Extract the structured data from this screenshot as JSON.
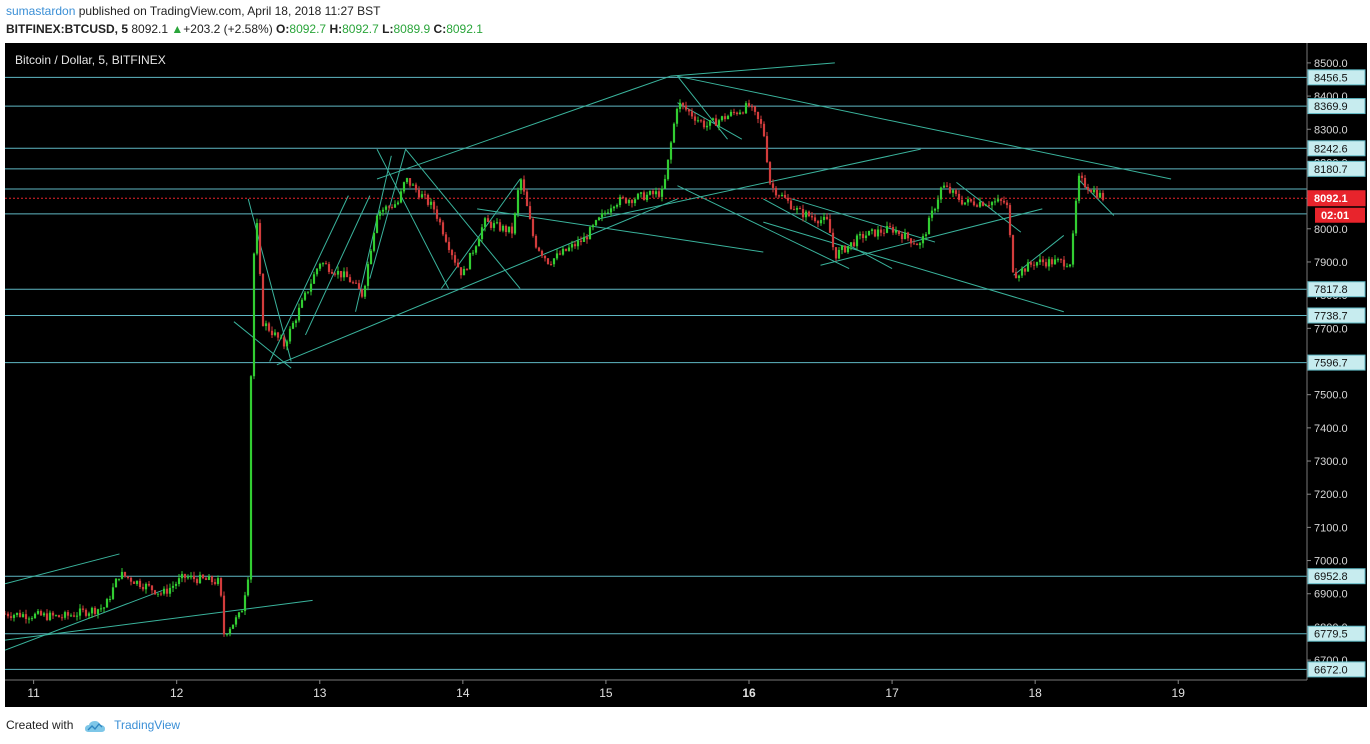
{
  "header": {
    "author": "sumastardon",
    "published_text": "published on TradingView.com, April 18, 2018 11:27 BST",
    "symbol": "BITFINEX:BTCUSD, 5",
    "last": "8092.1",
    "change": "+203.2 (+2.58%)",
    "o_label": "O:",
    "o": "8092.7",
    "h_label": "H:",
    "h": "8092.7",
    "l_label": "L:",
    "l": "8089.9",
    "c_label": "C:",
    "c": "8092.1"
  },
  "footer": {
    "created_with": "Created with",
    "brand": "TradingView"
  },
  "colors": {
    "background": "#000000",
    "up": "#32cd32",
    "down": "#d23c3c",
    "level": "#5fb8c4",
    "trend": "#3ab39c",
    "price_tag": "#e8242c"
  },
  "chart_data": {
    "type": "candlestick",
    "title": "Bitcoin / Dollar, 5, BITFINEX",
    "ylim": [
      6640,
      8560
    ],
    "y_ticks": [
      6700,
      6800,
      6900,
      7000,
      7100,
      7200,
      7300,
      7400,
      7500,
      7600,
      7700,
      7800,
      7900,
      8000,
      8100,
      8200,
      8300,
      8400,
      8500
    ],
    "y_tick_labels": [
      "6700.0",
      "6800.0",
      "6900.0",
      "7000.0",
      "7100.0",
      "7200.0",
      "7300.0",
      "7400.0",
      "7500.0",
      "7600.0",
      "7700.0",
      "7800.0",
      "7900.0",
      "8000.0",
      "8100.0",
      "8200.0",
      "8300.0",
      "8400.0",
      "8500.0"
    ],
    "x_range": [
      10.8,
      19.9
    ],
    "x_ticks": [
      11,
      12,
      13,
      14,
      15,
      16,
      17,
      18,
      19
    ],
    "x_tick_labels": [
      "11",
      "12",
      "13",
      "14",
      "15",
      "16",
      "17",
      "18",
      "19"
    ],
    "x_tick_bold": [
      16
    ],
    "horizontal_levels": [
      8456.5,
      8369.9,
      8242.6,
      8180.7,
      8092.1,
      7817.8,
      7738.7,
      7596.7,
      6952.8,
      6779.5,
      6672.0
    ],
    "level_labels": [
      "8456.5",
      "8369.9",
      "8242.6",
      "8180.7",
      "8092.1",
      "7817.8",
      "7738.7",
      "7596.7",
      "6952.8",
      "6779.5",
      "6672.0"
    ],
    "extra_levels": [
      8120,
      8045
    ],
    "last_price": 8092.1,
    "last_price_label": "8092.1",
    "countdown": "02:01",
    "price_path": [
      [
        10.8,
        6840
      ],
      [
        11.2,
        6830
      ],
      [
        11.5,
        6860
      ],
      [
        11.6,
        6960
      ],
      [
        11.9,
        6900
      ],
      [
        12.05,
        6950
      ],
      [
        12.3,
        6935
      ],
      [
        12.33,
        6780
      ],
      [
        12.45,
        6840
      ],
      [
        12.5,
        6960
      ],
      [
        12.52,
        7580
      ],
      [
        12.55,
        8090
      ],
      [
        12.6,
        7720
      ],
      [
        12.75,
        7650
      ],
      [
        12.9,
        7800
      ],
      [
        13.0,
        7900
      ],
      [
        13.2,
        7850
      ],
      [
        13.3,
        7800
      ],
      [
        13.4,
        8050
      ],
      [
        13.55,
        8080
      ],
      [
        13.6,
        8150
      ],
      [
        13.8,
        8060
      ],
      [
        13.95,
        7900
      ],
      [
        14.0,
        7860
      ],
      [
        14.15,
        8020
      ],
      [
        14.35,
        7990
      ],
      [
        14.4,
        8160
      ],
      [
        14.5,
        7960
      ],
      [
        14.6,
        7900
      ],
      [
        14.85,
        7970
      ],
      [
        15.05,
        8080
      ],
      [
        15.4,
        8110
      ],
      [
        15.5,
        8380
      ],
      [
        15.7,
        8310
      ],
      [
        16.0,
        8370
      ],
      [
        16.1,
        8300
      ],
      [
        16.15,
        8130
      ],
      [
        16.35,
        8050
      ],
      [
        16.55,
        8020
      ],
      [
        16.6,
        7920
      ],
      [
        16.8,
        7980
      ],
      [
        17.0,
        8000
      ],
      [
        17.2,
        7950
      ],
      [
        17.35,
        8130
      ],
      [
        17.5,
        8080
      ],
      [
        17.8,
        8080
      ],
      [
        17.85,
        7860
      ],
      [
        18.0,
        7900
      ],
      [
        18.25,
        7900
      ],
      [
        18.3,
        8150
      ],
      [
        18.48,
        8092
      ]
    ],
    "trend_lines": [
      [
        10.8,
        6930,
        11.6,
        7020
      ],
      [
        10.8,
        6730,
        11.9,
        6910
      ],
      [
        10.8,
        6760,
        12.95,
        6880
      ],
      [
        12.5,
        8090,
        12.8,
        7600
      ],
      [
        12.4,
        7720,
        12.8,
        7580
      ],
      [
        12.65,
        7600,
        13.2,
        8100
      ],
      [
        12.9,
        7680,
        13.35,
        8100
      ],
      [
        13.25,
        7750,
        13.5,
        8220
      ],
      [
        13.35,
        7850,
        13.6,
        8240
      ],
      [
        13.4,
        8240,
        13.9,
        7820
      ],
      [
        13.6,
        8240,
        14.4,
        7820
      ],
      [
        12.7,
        7590,
        15.5,
        8090
      ],
      [
        13.4,
        8150,
        15.45,
        8460
      ],
      [
        15.5,
        8460,
        18.95,
        8150
      ],
      [
        15.5,
        8460,
        15.85,
        8270
      ],
      [
        15.5,
        8380,
        15.95,
        8270
      ],
      [
        14.1,
        8060,
        16.1,
        7930
      ],
      [
        15.5,
        8130,
        16.7,
        7880
      ],
      [
        16.1,
        8090,
        17.0,
        7880
      ],
      [
        16.5,
        7890,
        18.05,
        8060
      ],
      [
        16.3,
        8090,
        17.3,
        7960
      ],
      [
        17.45,
        8140,
        17.9,
        7990
      ],
      [
        14.95,
        8030,
        17.2,
        8240
      ],
      [
        16.1,
        8020,
        18.2,
        7750
      ],
      [
        17.85,
        7860,
        18.2,
        7980
      ],
      [
        13.85,
        7820,
        14.4,
        8150
      ],
      [
        18.3,
        8150,
        18.55,
        8040
      ],
      [
        15.45,
        8460,
        16.6,
        8500
      ]
    ]
  }
}
